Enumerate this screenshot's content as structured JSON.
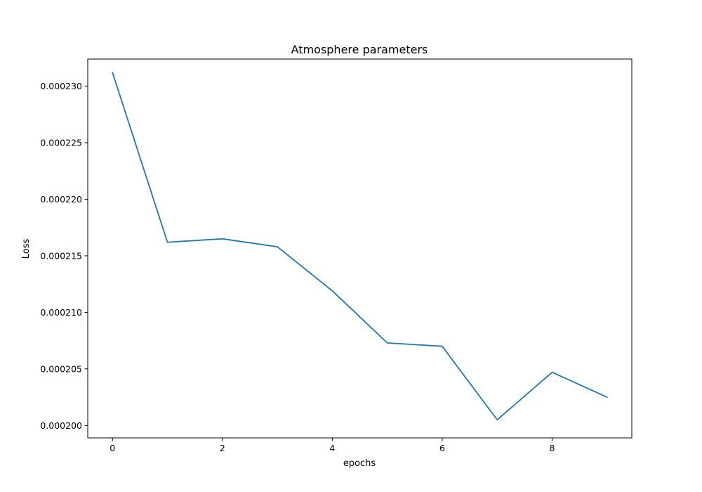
{
  "chart_data": {
    "type": "line",
    "title": "Atmosphere parameters",
    "xlabel": "epochs",
    "ylabel": "Loss",
    "xlim": [
      -0.45,
      9.45
    ],
    "ylim": [
      0.0001989,
      0.0002324
    ],
    "xticks": [
      0,
      2,
      4,
      6,
      8
    ],
    "xtick_labels": [
      "0",
      "2",
      "4",
      "6",
      "8"
    ],
    "yticks": [
      0.0002,
      0.000205,
      0.00021,
      0.000215,
      0.00022,
      0.000225,
      0.00023
    ],
    "ytick_labels": [
      "0.000200",
      "0.000205",
      "0.000210",
      "0.000215",
      "0.000220",
      "0.000225",
      "0.000230"
    ],
    "grid": false,
    "x": [
      0,
      1,
      2,
      3,
      4,
      5,
      6,
      7,
      8,
      9
    ],
    "series": [
      {
        "color": "#1f77b4",
        "values": [
          0.0002312,
          0.0002162,
          0.0002165,
          0.0002158,
          0.0002119,
          0.0002073,
          0.000207,
          0.0002005,
          0.0002047,
          0.0002025
        ]
      }
    ]
  }
}
